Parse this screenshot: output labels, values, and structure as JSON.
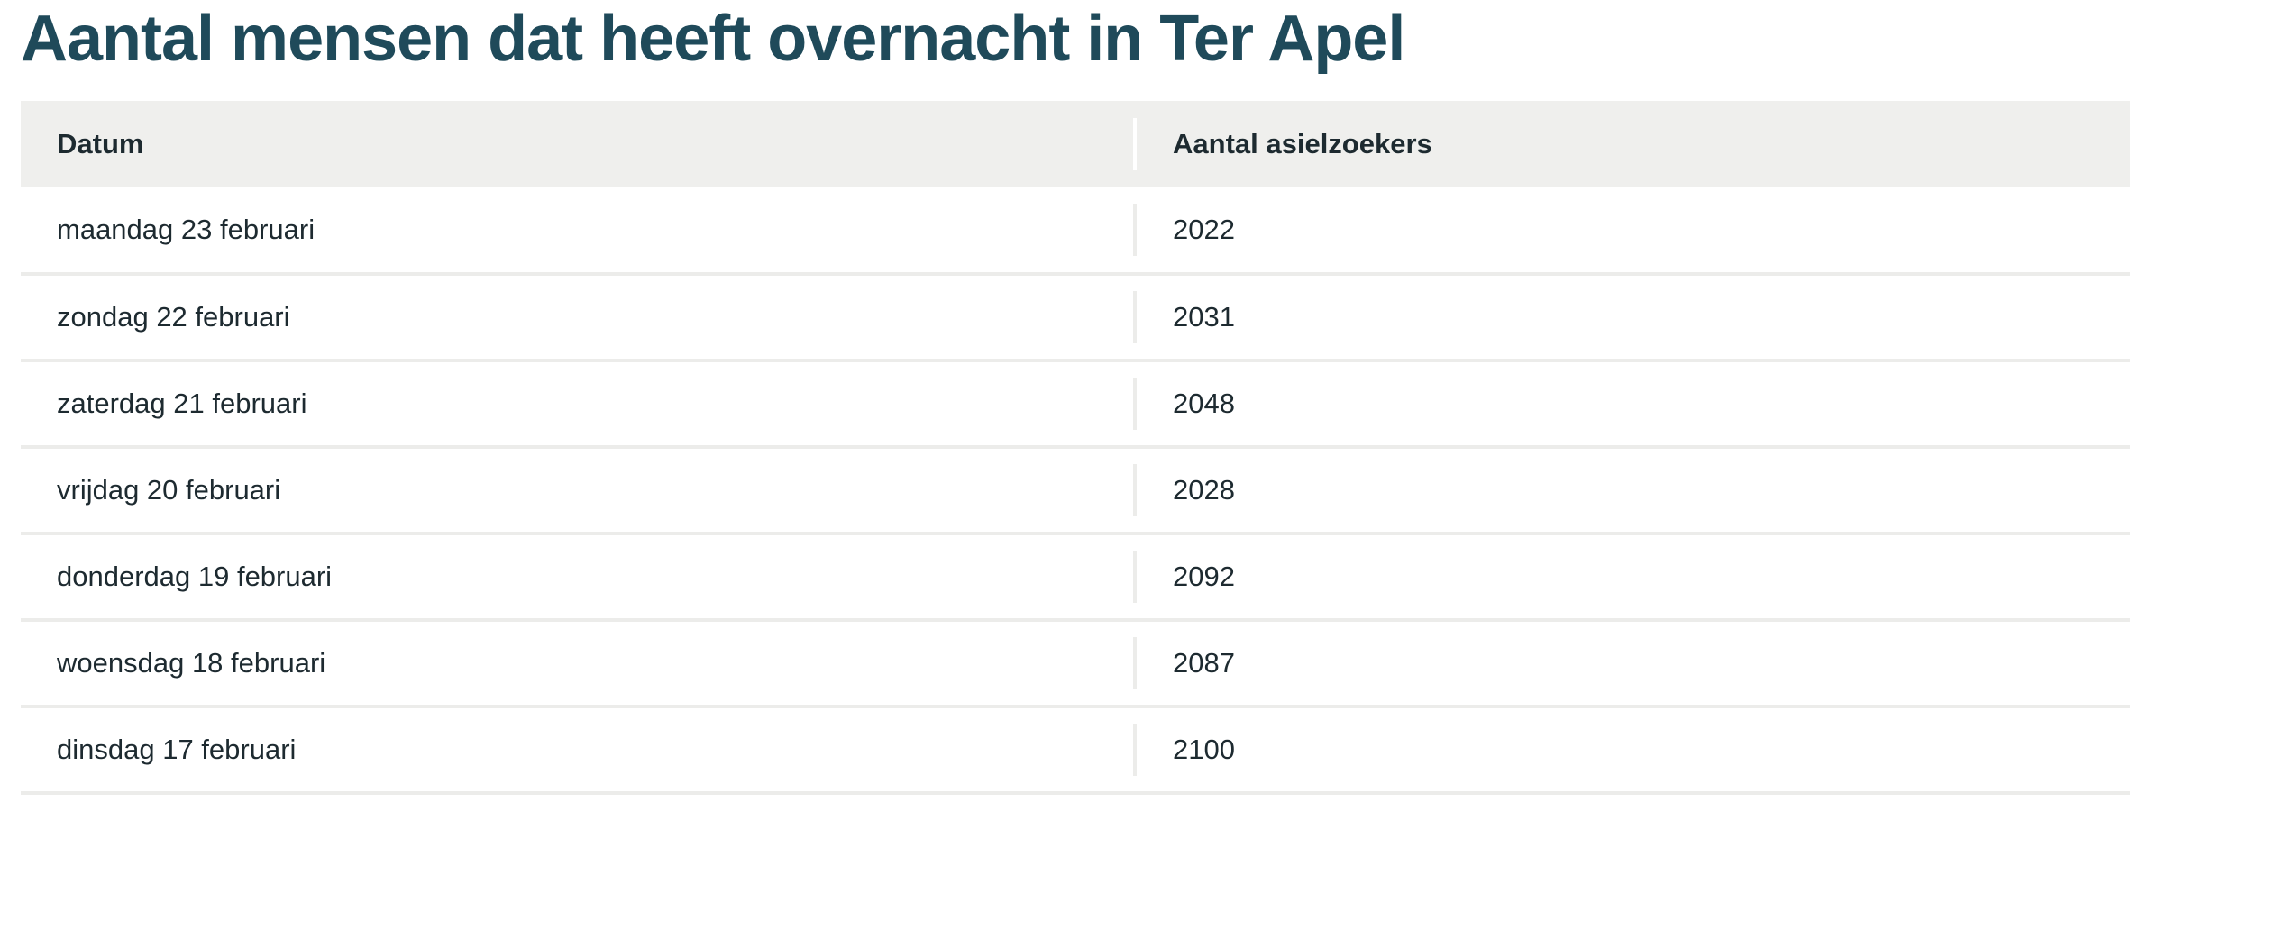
{
  "title": "Aantal mensen dat heeft overnacht in Ter Apel",
  "table": {
    "headers": [
      "Datum",
      "Aantal asielzoekers"
    ],
    "rows": [
      {
        "datum": "maandag 23 februari",
        "aantal": "2022"
      },
      {
        "datum": "zondag 22 februari",
        "aantal": "2031"
      },
      {
        "datum": "zaterdag 21 februari",
        "aantal": "2048"
      },
      {
        "datum": "vrijdag 20 februari",
        "aantal": "2028"
      },
      {
        "datum": "donderdag 19 februari",
        "aantal": "2092"
      },
      {
        "datum": "woensdag 18 februari",
        "aantal": "2087"
      },
      {
        "datum": "dinsdag 17 februari",
        "aantal": "2100"
      }
    ]
  },
  "colors": {
    "title": "#1f4a5a",
    "header_background": "#efefed",
    "row_divider": "#ececea",
    "text": "#1d2a30"
  }
}
